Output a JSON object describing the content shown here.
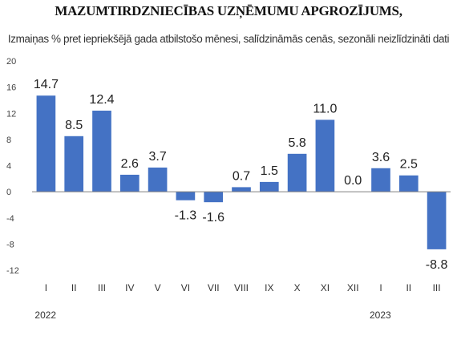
{
  "title": "MAZUMTIRDZNIECĪBAS UZŅĒMUMU APGROZĪJUMS,",
  "subtitle": "Izmaiņas % pret iepriekšējā gada atbilstošo mēnesi, salīdzināmās cenās, sezonāli neizlīdzināti dati",
  "chart_data": {
    "type": "bar",
    "title": "MAZUMTIRDZNIECĪBAS UZŅĒMUMU APGROZĪJUMS,",
    "subtitle": "Izmaiņas % pret iepriekšējā gada atbilstošo mēnesi, salīdzināmās cenās, sezonāli neizlīdzināti dati",
    "categories": [
      "I",
      "II",
      "III",
      "IV",
      "V",
      "VI",
      "VII",
      "VIII",
      "IX",
      "X",
      "XI",
      "XII",
      "I",
      "II",
      "III"
    ],
    "values": [
      14.7,
      8.5,
      12.4,
      2.6,
      3.7,
      -1.3,
      -1.6,
      0.7,
      1.5,
      5.8,
      11.0,
      0.0,
      3.6,
      2.5,
      -8.8
    ],
    "value_labels": [
      "14.7",
      "8.5",
      "12.4",
      "2.6",
      "3.7",
      "-1.3",
      "-1.6",
      "0.7",
      "1.5",
      "5.8",
      "11.0",
      "0.0",
      "3.6",
      "2.5",
      "-8.8"
    ],
    "year_labels": [
      {
        "label": "2022",
        "category_index": 0
      },
      {
        "label": "2023",
        "category_index": 12
      }
    ],
    "yticks": [
      20,
      16,
      12,
      8,
      4,
      0,
      -4,
      -8,
      -12
    ],
    "ylim": [
      -12,
      20
    ],
    "xlabel": "",
    "ylabel": "",
    "grid": false,
    "legend": "none",
    "bar_color": "#4472C4",
    "axis_color": "#7F7F7F"
  }
}
